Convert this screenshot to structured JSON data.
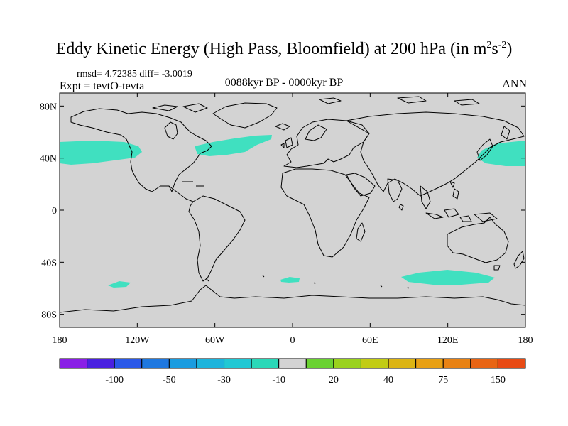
{
  "title": "Eddy Kinetic Energy (High Pass, Bloomfield) at 200 hPa (in m",
  "title_unit_exp1": "2",
  "title_unit_s": "s",
  "title_unit_exp2": "-2",
  "title_close": ")",
  "stats_text": "rmsd= 4.72385 diff= -3.0019",
  "expt_text": "Expt = tevtO-tevta",
  "period_text": "0088kyr BP - 0000kyr BP",
  "season_text": "ANN",
  "map": {
    "land_sea_color": "#d3d3d3",
    "coastline_color": "#000000",
    "lat_labels": [
      "80N",
      "40N",
      "0",
      "40S",
      "80S"
    ],
    "lon_labels": [
      "180",
      "120W",
      "60W",
      "0",
      "60E",
      "120E",
      "180"
    ]
  },
  "anomaly_regions_color": "#40e0c0",
  "colorbar": {
    "colors": [
      "#8a1ee6",
      "#4a20e0",
      "#2a58e8",
      "#1e78e0",
      "#1a9ce0",
      "#1cb4dc",
      "#20c8d4",
      "#2ad8b8",
      "#d3d3d3",
      "#6ad232",
      "#9ad21e",
      "#c2cc14",
      "#dcb414",
      "#e8a014",
      "#e88214",
      "#e86414",
      "#e84a14"
    ],
    "labels": [
      "-100",
      "-50",
      "-30",
      "-10",
      "20",
      "40",
      "75",
      "150"
    ]
  }
}
